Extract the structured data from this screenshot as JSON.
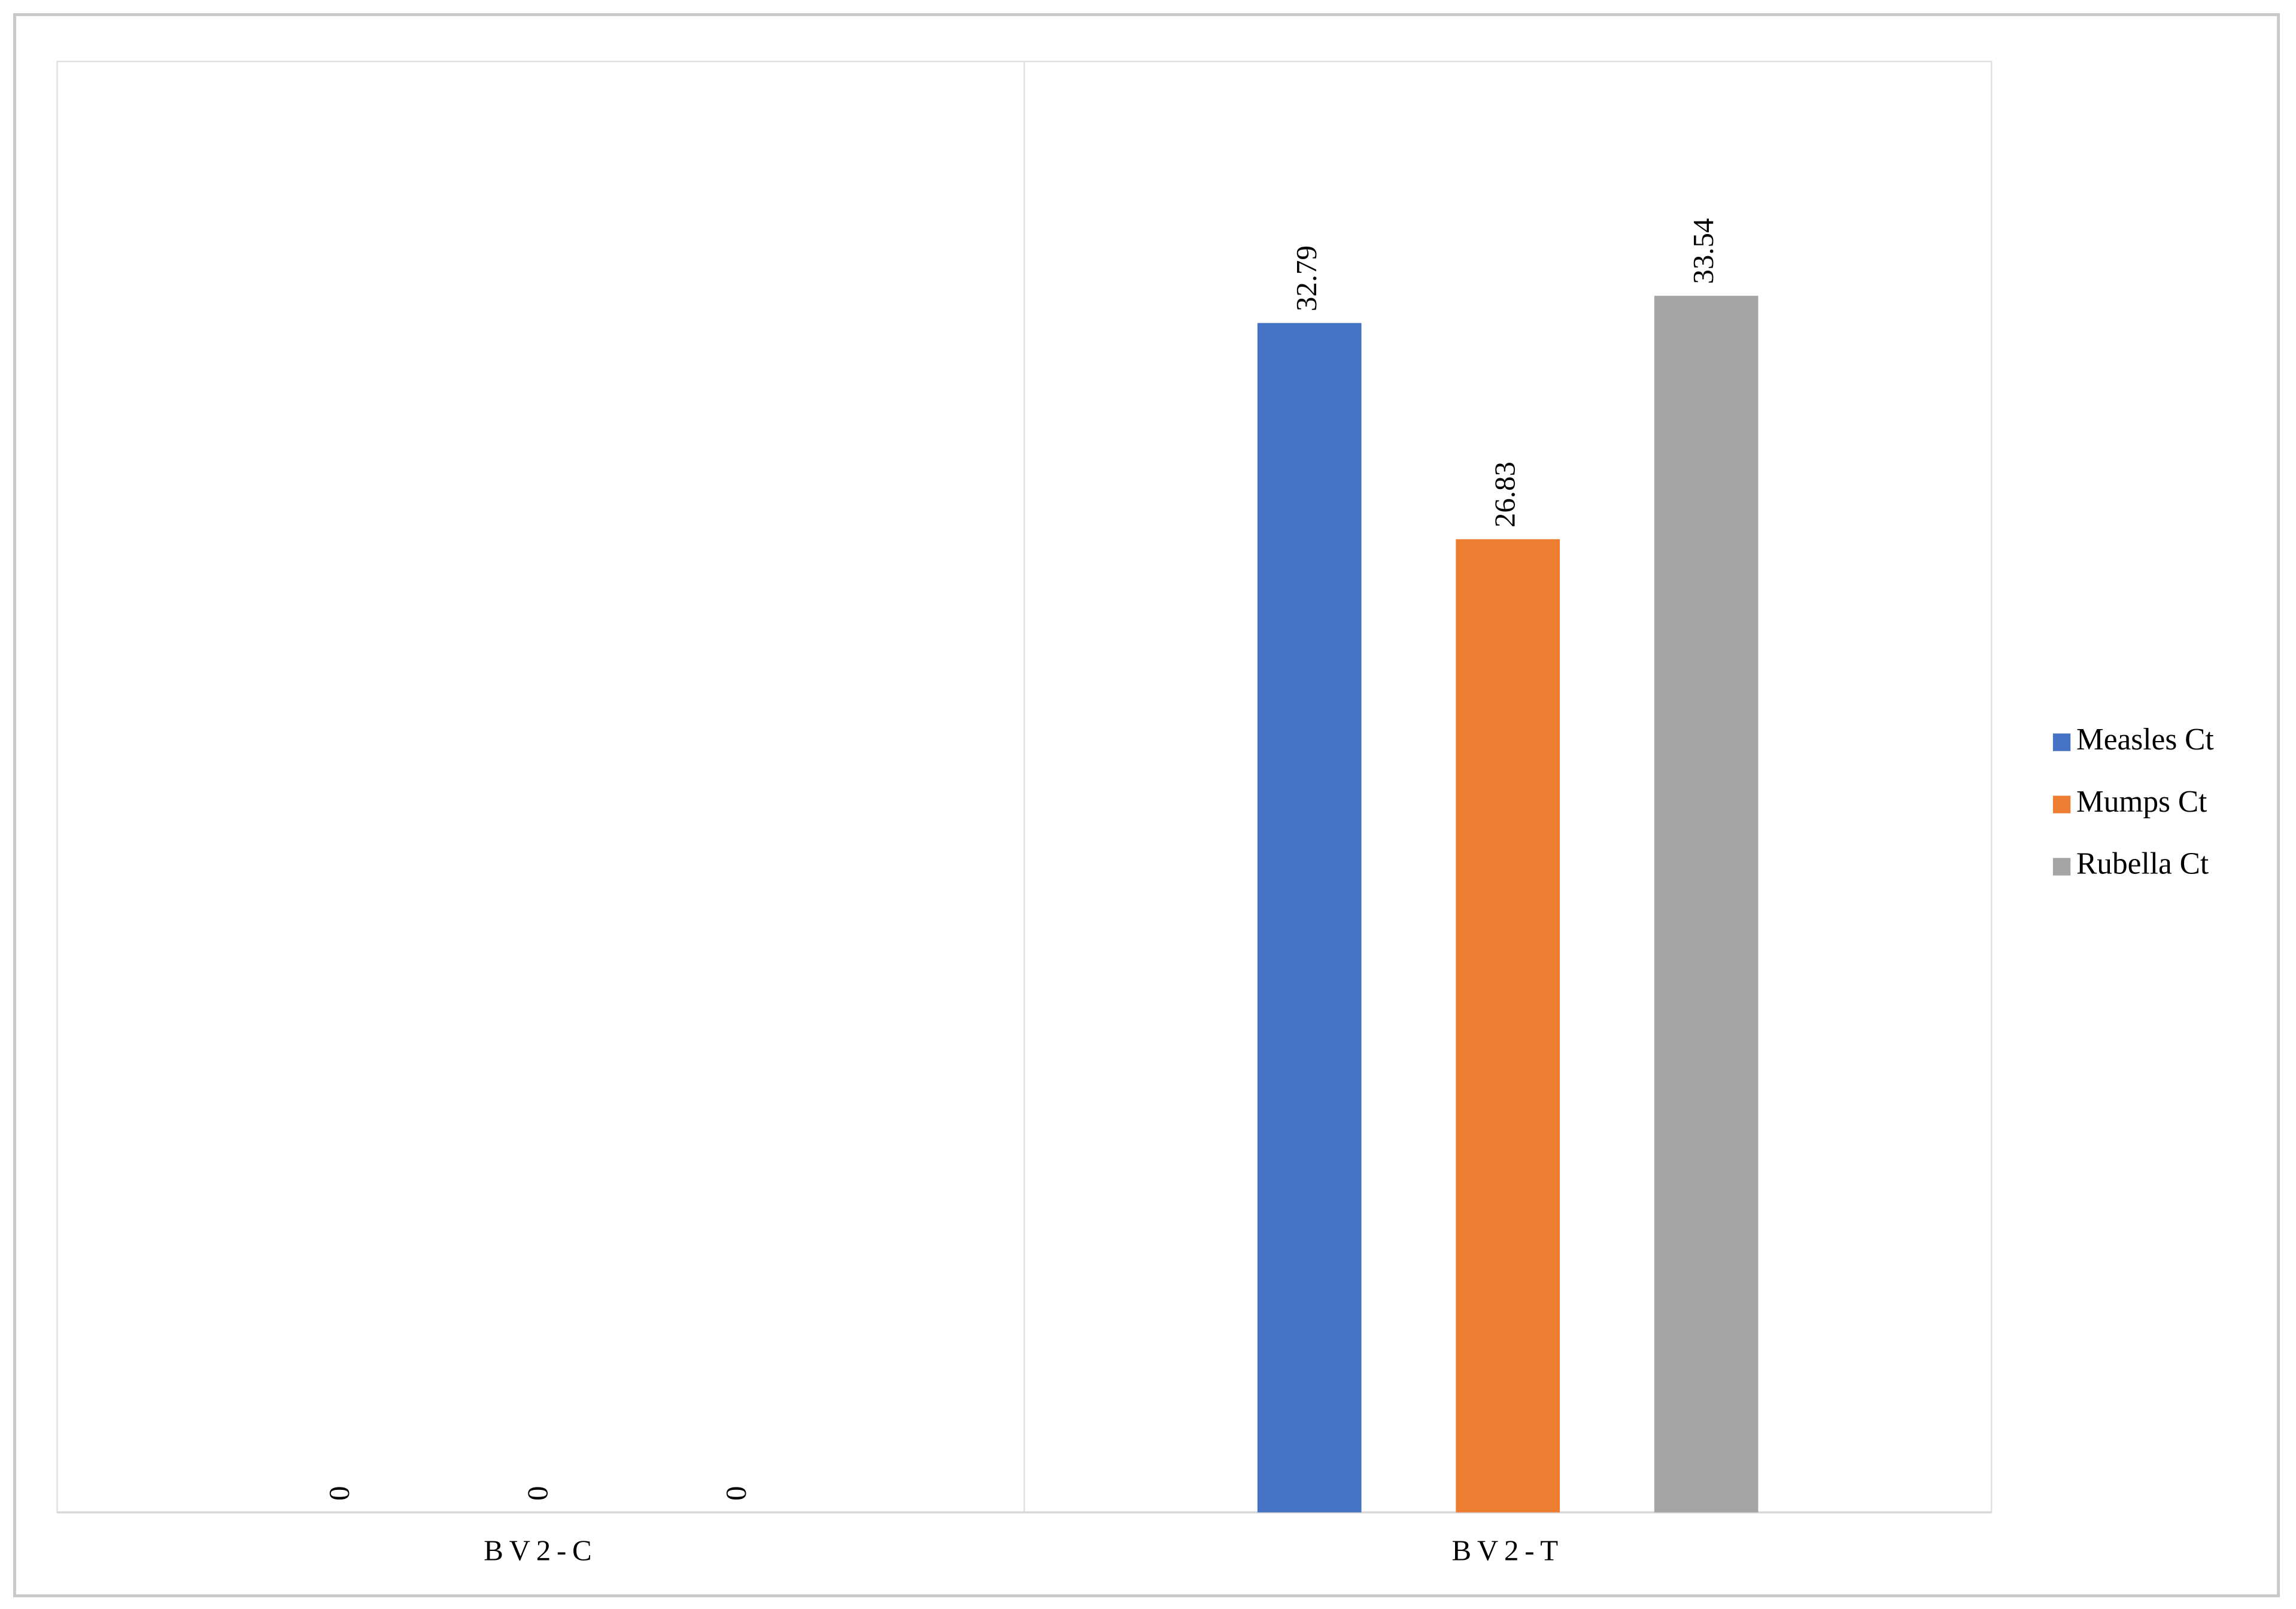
{
  "chart_data": {
    "type": "bar",
    "categories": [
      "BV2-C",
      "BV2-T"
    ],
    "series": [
      {
        "name": "Measles Ct",
        "color": "#4472c4",
        "values": [
          0,
          32.79
        ]
      },
      {
        "name": "Mumps Ct",
        "color": "#ed7d31",
        "values": [
          0,
          26.83
        ]
      },
      {
        "name": "Rubella Ct",
        "color": "#a5a5a5",
        "values": [
          0,
          33.54
        ]
      }
    ],
    "ylim": [
      0,
      40
    ],
    "legend": "right"
  }
}
